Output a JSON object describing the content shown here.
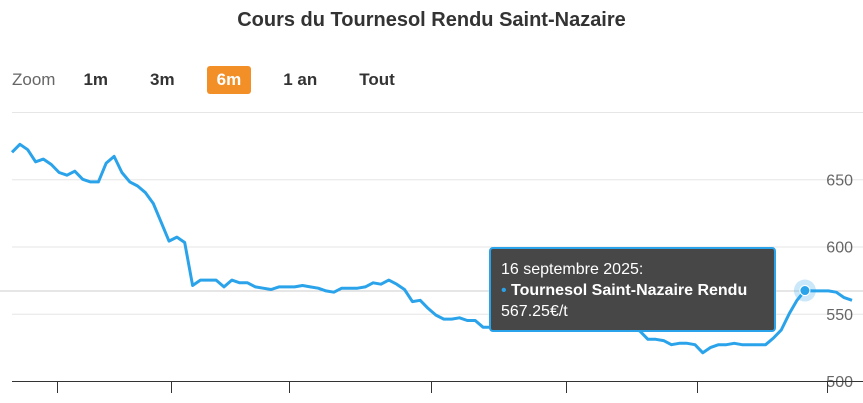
{
  "title": "Cours du Tournesol Rendu Saint-Nazaire",
  "zoom": {
    "label": "Zoom",
    "buttons": [
      "1m",
      "3m",
      "6m",
      "1 an",
      "Tout"
    ],
    "active": "6m",
    "active_color": "#f28f26"
  },
  "tooltip": {
    "date": "16 septembre 2025:",
    "series": "Tournesol Saint-Nazaire Rendu",
    "value": "567.25€/t"
  },
  "chart_data": {
    "type": "line",
    "title": "Cours du Tournesol Rendu Saint-Nazaire",
    "ylim": [
      500,
      700
    ],
    "yticks": [
      500,
      550,
      600,
      650
    ],
    "y_axis_side": "right",
    "grid": true,
    "line_color": "#2aa3ea",
    "series": [
      {
        "name": "Tournesol Saint-Nazaire Rendu",
        "unit": "€/t",
        "values": [
          670,
          676,
          672,
          663,
          665,
          661,
          655,
          653,
          656,
          650,
          648,
          648,
          662,
          667,
          655,
          648,
          645,
          640,
          632,
          618,
          604,
          607,
          603,
          571,
          575,
          575,
          575,
          570,
          575,
          573,
          573,
          570,
          569,
          568,
          570,
          570,
          570,
          571,
          570,
          569,
          567,
          566,
          569,
          569,
          569,
          570,
          573,
          572,
          575,
          572,
          568,
          559,
          560,
          554,
          549,
          546,
          546,
          547,
          545,
          545,
          540,
          540,
          540,
          541,
          541,
          539,
          542,
          543,
          545,
          545,
          544,
          545,
          545,
          547,
          546,
          545,
          542,
          543,
          545,
          540,
          537,
          531,
          531,
          530,
          527,
          528,
          528,
          527,
          521,
          525,
          527,
          527,
          528,
          527,
          527,
          527,
          527,
          532,
          538,
          550,
          560,
          567.25,
          567,
          567,
          567,
          566,
          562,
          560
        ]
      }
    ],
    "highlight_index": 101
  }
}
